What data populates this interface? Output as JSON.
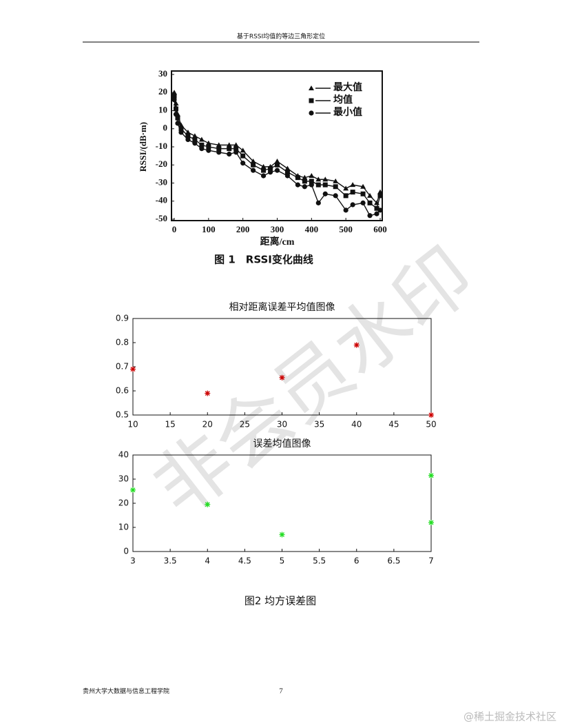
{
  "header": "基于RSSI均值的等边三角形定位",
  "captions": [
    "图 1　RSSI变化曲线",
    "图2 均方误差图"
  ],
  "footer": {
    "left": "贵州大学大数据与信息工程学院",
    "page": "7",
    "credit": "@稀土掘金技术社区"
  },
  "watermark": "非会员水印",
  "chart_data": [
    {
      "type": "line",
      "xlabel": "距离/cm",
      "ylabel": "RSSI/(dB·m)",
      "legend": "upper right",
      "grid": false,
      "x": [
        0,
        5,
        10,
        20,
        40,
        60,
        80,
        100,
        130,
        160,
        180,
        200,
        230,
        260,
        280,
        300,
        330,
        360,
        380,
        400,
        420,
        440,
        470,
        500,
        520,
        550,
        570,
        590,
        600
      ],
      "xlim": [
        0,
        600
      ],
      "xticks": [
        0,
        100,
        200,
        300,
        400,
        500,
        600
      ],
      "ylim": [
        -50,
        30
      ],
      "yticks": [
        -50,
        -40,
        -30,
        -20,
        -10,
        0,
        10,
        20,
        30
      ],
      "series": [
        {
          "name": "最大值",
          "color": "#111111",
          "marker": "triangle",
          "values": [
            20,
            14,
            8,
            2,
            -2,
            -4,
            -6,
            -8,
            -9,
            -9,
            -9,
            -12,
            -18,
            -21,
            -21,
            -18,
            -22,
            -26,
            -27,
            -26,
            -28,
            -28,
            -29,
            -33,
            -31,
            -32,
            -37,
            -41,
            -35
          ]
        },
        {
          "name": "均值",
          "color": "#111111",
          "marker": "square",
          "values": [
            18,
            11,
            6,
            0,
            -4,
            -6,
            -9,
            -10,
            -11,
            -11,
            -11,
            -15,
            -20,
            -23,
            -22,
            -20,
            -24,
            -27,
            -29,
            -29,
            -31,
            -31,
            -32,
            -37,
            -35,
            -36,
            -41,
            -44,
            -37
          ]
        },
        {
          "name": "最小值",
          "color": "#111111",
          "marker": "circle",
          "values": [
            16,
            8,
            3,
            -2,
            -6,
            -8,
            -11,
            -12,
            -13,
            -14,
            -13,
            -19,
            -23,
            -26,
            -24,
            -23,
            -26,
            -31,
            -32,
            -31,
            -41,
            -36,
            -37,
            -45,
            -42,
            -41,
            -48,
            -47,
            -45
          ]
        }
      ]
    },
    {
      "type": "scatter",
      "title": "相对距离误差平均值图像",
      "color": "#cc0000",
      "x": [
        10,
        20,
        30,
        40,
        50
      ],
      "values": [
        0.69,
        0.59,
        0.655,
        0.79,
        0.5
      ],
      "xlim": [
        10,
        50
      ],
      "xticks": [
        10,
        15,
        20,
        25,
        30,
        35,
        40,
        45,
        50
      ],
      "ylim": [
        0.5,
        0.9
      ],
      "yticks": [
        0.5,
        0.6,
        0.7,
        0.8,
        0.9
      ]
    },
    {
      "type": "scatter",
      "title": "误差均值图像",
      "color": "#22dd22",
      "x": [
        3,
        4,
        5,
        7,
        7
      ],
      "values": [
        25.5,
        19.5,
        7,
        31.5,
        12
      ],
      "xlim": [
        3,
        7
      ],
      "xticks": [
        3,
        3.5,
        4,
        4.5,
        5,
        5.5,
        6,
        6.5,
        7
      ],
      "ylim": [
        0,
        40
      ],
      "yticks": [
        0,
        10,
        20,
        30,
        40
      ]
    }
  ]
}
